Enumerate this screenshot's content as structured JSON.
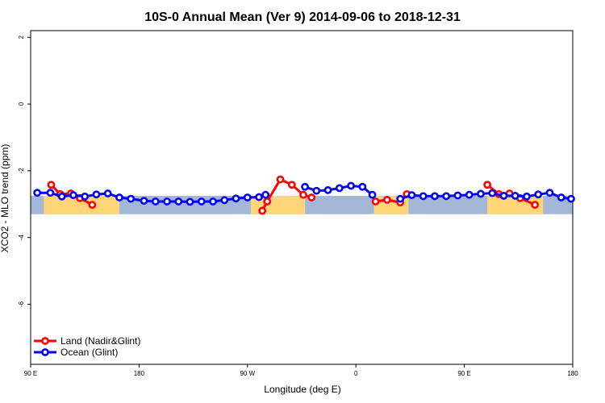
{
  "chart_data": {
    "type": "line",
    "title": "10S-0 Annual Mean (Ver 9)   2014-09-06 to 2018-12-31",
    "xlabel": "Longitude (deg E)",
    "ylabel": "XCO2 - MLO trend (ppm)",
    "xlim": [
      90,
      420
    ],
    "ylim": [
      -7.8,
      2.2
    ],
    "x_ticks": [
      {
        "value": 90,
        "label": "90 E"
      },
      {
        "value": 156,
        "label": "180"
      },
      {
        "value": 222,
        "label": "90 W"
      },
      {
        "value": 288,
        "label": "0"
      },
      {
        "value": 354,
        "label": "90 E"
      },
      {
        "value": 420,
        "label": "180"
      }
    ],
    "y_ticks": [
      {
        "value": 2,
        "label": "2"
      },
      {
        "value": 0,
        "label": "0"
      },
      {
        "value": -2,
        "label": "-2"
      },
      {
        "value": -4,
        "label": "-4"
      },
      {
        "value": -6,
        "label": "-6"
      }
    ],
    "grid": false,
    "legend_position": "bottom-left",
    "series": [
      {
        "name": "Land (Nadir&Glint)",
        "color": "#ff0000",
        "segments": [
          [
            [
              102.5,
              -2.42
            ],
            [
              108,
              -2.7
            ],
            [
              114.5,
              -2.68
            ],
            [
              120,
              -2.82
            ],
            [
              127.5,
              -3.02
            ]
          ],
          [
            [
              231,
              -3.2
            ],
            [
              234,
              -2.92
            ],
            [
              242,
              -2.26
            ],
            [
              249,
              -2.42
            ],
            [
              256,
              -2.72
            ],
            [
              261,
              -2.8
            ]
          ],
          [
            [
              300,
              -2.92
            ],
            [
              307,
              -2.87
            ],
            [
              315,
              -2.95
            ],
            [
              319,
              -2.7
            ]
          ],
          [
            [
              368,
              -2.42
            ],
            [
              375,
              -2.7
            ],
            [
              381.5,
              -2.68
            ],
            [
              388,
              -2.82
            ],
            [
              397,
              -3.02
            ]
          ]
        ]
      },
      {
        "name": "Ocean (Glint)",
        "color": "#0000ff",
        "segments": [
          [
            [
              94,
              -2.66
            ],
            [
              102,
              -2.66
            ],
            [
              109,
              -2.77
            ],
            [
              116,
              -2.73
            ],
            [
              123,
              -2.77
            ],
            [
              130,
              -2.71
            ],
            [
              137,
              -2.68
            ],
            [
              144,
              -2.8
            ],
            [
              151,
              -2.84
            ],
            [
              159,
              -2.9
            ],
            [
              166,
              -2.92
            ],
            [
              173,
              -2.92
            ],
            [
              180,
              -2.92
            ],
            [
              187,
              -2.93
            ],
            [
              194,
              -2.92
            ],
            [
              201,
              -2.92
            ],
            [
              208,
              -2.88
            ],
            [
              215,
              -2.83
            ],
            [
              222,
              -2.8
            ],
            [
              229,
              -2.79
            ],
            [
              233,
              -2.72
            ]
          ],
          [
            [
              257,
              -2.48
            ],
            [
              264,
              -2.6
            ],
            [
              271,
              -2.58
            ],
            [
              278,
              -2.52
            ],
            [
              285,
              -2.45
            ],
            [
              292,
              -2.48
            ],
            [
              298,
              -2.72
            ]
          ],
          [
            [
              315,
              -2.84
            ],
            [
              322,
              -2.73
            ],
            [
              329,
              -2.76
            ],
            [
              336,
              -2.76
            ],
            [
              343,
              -2.76
            ],
            [
              350,
              -2.74
            ],
            [
              357,
              -2.72
            ],
            [
              364,
              -2.69
            ],
            [
              371,
              -2.67
            ],
            [
              378,
              -2.75
            ],
            [
              385,
              -2.75
            ],
            [
              392,
              -2.77
            ],
            [
              399,
              -2.71
            ],
            [
              406,
              -2.66
            ],
            [
              413,
              -2.8
            ],
            [
              419,
              -2.84
            ]
          ]
        ]
      }
    ],
    "background_band": {
      "y_range": [
        -3.3,
        -2.75
      ],
      "ocean_color": "#a3b7d6",
      "land_color": "#ffd57a",
      "land_regions": [
        {
          "x": [
            224,
            257
          ]
        },
        {
          "x": [
            299,
            320
          ]
        },
        {
          "x": [
            98,
            144
          ]
        },
        {
          "x": [
            368,
            402
          ]
        }
      ]
    }
  }
}
